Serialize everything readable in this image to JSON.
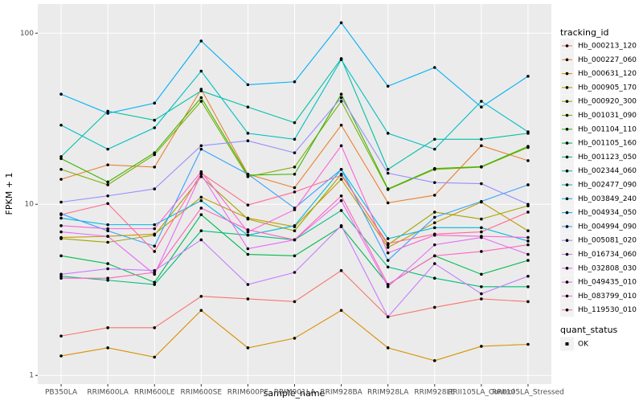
{
  "chart_data": {
    "type": "line",
    "x_label": "sample_name",
    "y_label": "FPKM + 1",
    "log_scale": true,
    "grid": true,
    "ylim": [
      0.89,
      148
    ],
    "yticks": [
      1,
      10,
      100
    ],
    "legend_title": "tracking_id",
    "point_color": "#000000",
    "shape_legend": {
      "title": "quant_status",
      "labels": [
        "OK"
      ]
    },
    "categories": [
      "PB350LA",
      "RRIM600LA",
      "RRIM600LE",
      "RRIM600SE",
      "RRIM600PE",
      "RRIM901LA",
      "RRIM928BA",
      "RRIM928LA",
      "RRIM928LE",
      "RRII105LA_Control",
      "RRII105LA_Stressed"
    ],
    "series": [
      {
        "name": "Hb_000213_120",
        "color": "#F8766D",
        "values": [
          1.7,
          1.9,
          1.9,
          2.9,
          2.8,
          2.7,
          4.1,
          2.2,
          2.5,
          2.8,
          2.7
        ]
      },
      {
        "name": "Hb_000227_060",
        "color": "#EA8331",
        "values": [
          14,
          17,
          16.5,
          47,
          15,
          12.5,
          29,
          10.2,
          11.3,
          22,
          18
        ]
      },
      {
        "name": "Hb_000631_120",
        "color": "#D89000",
        "values": [
          1.3,
          1.45,
          1.28,
          2.4,
          1.45,
          1.65,
          2.4,
          1.45,
          1.22,
          1.48,
          1.52
        ]
      },
      {
        "name": "Hb_000905_170",
        "color": "#C09B00",
        "values": [
          6.4,
          6.5,
          6.7,
          11,
          8.3,
          7.4,
          14,
          5.6,
          7.8,
          10.3,
          7
        ]
      },
      {
        "name": "Hb_000920_300",
        "color": "#A3A500",
        "values": [
          6.3,
          6,
          6.6,
          14.5,
          8.2,
          7,
          15,
          5.8,
          9,
          8.2,
          9.8
        ]
      },
      {
        "name": "Hb_001031_090",
        "color": "#7CAE00",
        "values": [
          16,
          13,
          19.5,
          40,
          14.5,
          16.5,
          40,
          12.2,
          16,
          16.5,
          21.5
        ]
      },
      {
        "name": "Hb_001104_110",
        "color": "#39B600",
        "values": [
          18.5,
          13.5,
          20,
          42,
          14.8,
          15,
          44,
          12.3,
          16.2,
          16.6,
          21.8
        ]
      },
      {
        "name": "Hb_001105_160",
        "color": "#00BB4E",
        "values": [
          5,
          4.5,
          3.5,
          8.7,
          5.1,
          5,
          7.4,
          3.4,
          5,
          3.9,
          4.7
        ]
      },
      {
        "name": "Hb_001123_050",
        "color": "#00BF7D",
        "values": [
          3.8,
          3.6,
          3.4,
          7,
          6.6,
          6.2,
          9.2,
          4.3,
          3.7,
          3.3,
          3.3
        ]
      },
      {
        "name": "Hb_002344_060",
        "color": "#00C1A3",
        "values": [
          19,
          35,
          31,
          46,
          37,
          30,
          71,
          16,
          24,
          24,
          26
        ]
      },
      {
        "name": "Hb_002477_090",
        "color": "#00BFC4",
        "values": [
          29,
          21,
          28,
          60,
          26,
          24,
          70,
          26,
          21,
          40,
          26.5
        ]
      },
      {
        "name": "Hb_003849_240",
        "color": "#00BAE0",
        "values": [
          8.3,
          7.6,
          7.6,
          10.5,
          6.6,
          7.5,
          16,
          6.3,
          7.3,
          7.3,
          6.1
        ]
      },
      {
        "name": "Hb_004934_050",
        "color": "#00B0F6",
        "values": [
          44,
          34,
          39,
          90,
          50,
          52,
          115,
          49,
          63,
          37,
          56
        ]
      },
      {
        "name": "Hb_004994_090",
        "color": "#35A2FF",
        "values": [
          8.8,
          7,
          5.7,
          21,
          15,
          9.5,
          16,
          4.7,
          8.4,
          10.4,
          13
        ]
      },
      {
        "name": "Hb_005081_020",
        "color": "#9590FF",
        "values": [
          10.3,
          11.2,
          12.3,
          22,
          23.5,
          20,
          42,
          15.2,
          13.4,
          13.2,
          10
        ]
      },
      {
        "name": "Hb_016734_060",
        "color": "#C77CFF",
        "values": [
          3.9,
          4.2,
          4.1,
          6.2,
          3.4,
          4,
          7.5,
          2.2,
          4.5,
          3,
          3.8
        ]
      },
      {
        "name": "Hb_032808_030",
        "color": "#E76BF3",
        "values": [
          6.9,
          6.5,
          3.9,
          15,
          5.5,
          6.2,
          10.5,
          3.3,
          5.8,
          6.4,
          5.1
        ]
      },
      {
        "name": "Hb_049435_010",
        "color": "#FA62DB",
        "values": [
          7.5,
          7.2,
          7.2,
          15.5,
          6.9,
          9.3,
          22,
          5.2,
          6.6,
          6.5,
          6.4
        ]
      },
      {
        "name": "Hb_083799_010",
        "color": "#FF62BC",
        "values": [
          3.7,
          3.7,
          4,
          9.5,
          7.1,
          6.2,
          11.2,
          3.4,
          5,
          5.3,
          5.8
        ]
      },
      {
        "name": "Hb_119530_010",
        "color": "#FF6C91",
        "values": [
          8.7,
          10.1,
          5.3,
          15.2,
          9.9,
          11.8,
          14.8,
          5.9,
          6.7,
          6.9,
          9
        ]
      }
    ]
  }
}
